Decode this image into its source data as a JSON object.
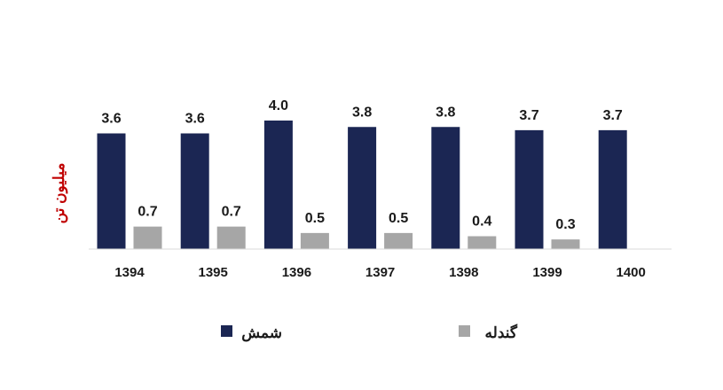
{
  "chart_data": {
    "type": "bar",
    "title": "",
    "xlabel": "",
    "ylabel": "میلیون تن",
    "categories": [
      "1394",
      "1395",
      "1396",
      "1397",
      "1398",
      "1399",
      "1400"
    ],
    "series": [
      {
        "name": "شمش",
        "color": "#1b2653",
        "values": [
          3.6,
          3.6,
          4.0,
          3.8,
          3.8,
          3.7,
          3.7
        ],
        "labels": [
          "3.6",
          "3.6",
          "4.0",
          "3.8",
          "3.8",
          "3.7",
          "3.7"
        ]
      },
      {
        "name": "گندله",
        "color": "#a6a6a6",
        "values": [
          0.7,
          0.7,
          0.5,
          0.5,
          0.4,
          0.3,
          null
        ],
        "labels": [
          "0.7",
          "0.7",
          "0.5",
          "0.5",
          "0.4",
          "0.3",
          ""
        ]
      }
    ],
    "ylim": [
      0,
      4.0
    ],
    "grid": false,
    "legend": "bottom",
    "ylabel_color": "#c00000"
  }
}
